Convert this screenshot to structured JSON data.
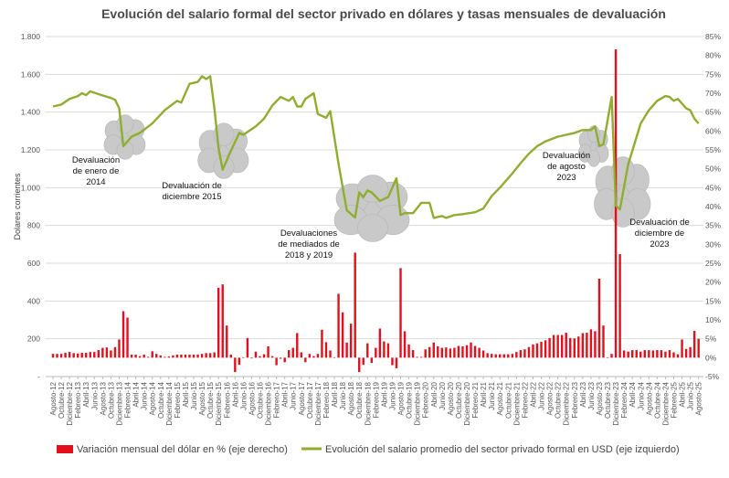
{
  "chart_data": {
    "type": "bar+line",
    "title": "Evolución del salario formal del sector privado en dólares y tasas mensuales de devaluación",
    "ylabel_left": "Dolares corrientes",
    "ylim_left": [
      0,
      1800
    ],
    "ylim_right": [
      -5,
      85
    ],
    "left_ticks": [
      "1.800",
      "1.600",
      "1.400",
      "1.200",
      "1.000",
      "800",
      "600",
      "400",
      "200",
      "-"
    ],
    "right_ticks": [
      "85%",
      "80%",
      "75%",
      "70%",
      "65%",
      "60%",
      "55%",
      "50%",
      "45%",
      "40%",
      "35%",
      "30%",
      "25%",
      "20%",
      "15%",
      "10%",
      "5%",
      "0%",
      "-5%"
    ],
    "grid": "horizontal",
    "legend_placement": "bottom",
    "x_range": [
      "2012-08",
      "2025-08"
    ],
    "x_tick_labels": [
      "Agosto-12",
      "Octubre-12",
      "Diciembre-12",
      "Febrero-13",
      "Abril-13",
      "Junio-13",
      "Agosto-13",
      "Octubre-13",
      "Diciembre-13",
      "Febrero-14",
      "Abril-14",
      "Junio-14",
      "Agosto-14",
      "Octubre-14",
      "Diciembre-14",
      "Febrero-15",
      "Abril-15",
      "Junio-15",
      "Agosto-15",
      "Octubre-15",
      "Diciembre-15",
      "Febrero-16",
      "Abril-16",
      "Junio-16",
      "Agosto-16",
      "Octubre-16",
      "Diciembre-16",
      "Febrero-17",
      "Abril-17",
      "Junio-17",
      "Agosto-17",
      "Octubre-17",
      "Diciembre-17",
      "Febrero-18",
      "Abril-18",
      "Junio-18",
      "Agosto-18",
      "Octubre-18",
      "Diciembre-18",
      "Febrero-19",
      "Abril-19",
      "Junio-19",
      "Agosto-19",
      "Octubre-19",
      "Diciembre-19",
      "Febrero-20",
      "Abril-20",
      "Junio-20",
      "Agosto-20",
      "Octubre-20",
      "Diciembre-20",
      "Febrero-21",
      "Abril-21",
      "Junio-21",
      "Agosto-21",
      "Octubre-21",
      "Diciembre-21",
      "Febrero-22",
      "Abril-22",
      "Junio-22",
      "Agosto-22",
      "Octubre-22",
      "Diciembre-22",
      "Febrero-23",
      "Abril-23",
      "Junio-23",
      "Agosto-23",
      "Octubre-23",
      "Diciembre-23",
      "Febrero-24",
      "Abril-24",
      "Junio-24",
      "Agosto-24",
      "Octubre-24",
      "Diciembre-24",
      "Febrero-25",
      "Abril-25",
      "Junio-25",
      "Agosto-25"
    ],
    "bar_series": {
      "name": "Variación mensual del dólar en % (eje derecho)",
      "axis": "right",
      "color": "#e3101c",
      "start": "2012-08",
      "frequency": "monthly",
      "values": [
        1.0,
        1.0,
        1.0,
        1.3,
        1.5,
        1.2,
        1.1,
        1.3,
        1.3,
        1.5,
        1.5,
        2.0,
        2.6,
        2.7,
        1.9,
        2.8,
        4.8,
        12.3,
        10.6,
        0.8,
        0.8,
        0.4,
        0.8,
        0.2,
        1.7,
        1.0,
        0.6,
        0.2,
        0.3,
        0.6,
        0.8,
        0.8,
        0.8,
        0.8,
        0.8,
        0.8,
        1.0,
        1.2,
        1.2,
        1.4,
        18.5,
        19.4,
        8.5,
        0.8,
        -3.8,
        -1.9,
        0.1,
        5.2,
        -0.2,
        1.6,
        0.4,
        0.9,
        3.0,
        0.4,
        -2.0,
        -0.3,
        -1.2,
        2.0,
        2.6,
        6.5,
        1.4,
        -1.2,
        1.0,
        0.4,
        1.0,
        7.4,
        4.1,
        1.9,
        0.1,
        16.9,
        12.0,
        4.0,
        9.0,
        27.8,
        -3.8,
        -1.9,
        3.8,
        -1.4,
        2.6,
        7.7,
        4.3,
        3.8,
        -2.0,
        -2.8,
        23.7,
        7.0,
        3.5,
        2.0,
        0.2,
        0.2,
        2.2,
        2.8,
        4.0,
        3.0,
        2.6,
        2.7,
        2.4,
        2.6,
        3.1,
        3.0,
        3.3,
        4.0,
        3.1,
        2.6,
        1.9,
        1.2,
        1.0,
        0.9,
        0.9,
        0.9,
        0.9,
        1.0,
        1.5,
        2.0,
        2.2,
        2.8,
        3.5,
        3.8,
        4.2,
        4.6,
        5.2,
        6.0,
        6.0,
        6.0,
        6.6,
        5.2,
        5.1,
        5.6,
        6.5,
        6.6,
        7.5,
        7.0,
        20.9,
        8.5,
        0.1,
        1.0,
        81.6,
        27.4,
        1.9,
        1.6,
        2.0,
        2.0,
        1.6,
        2.0,
        2.0,
        1.9,
        2.0,
        2.0,
        1.6,
        2.0,
        1.4,
        0.9,
        4.8,
        2.3,
        2.8,
        7.1,
        5.0
      ]
    },
    "line_series": {
      "name": "Evolución del salario promedio del sector privado formal en USD (eje izquierdo)",
      "axis": "left",
      "color": "#8fae2e",
      "points": [
        [
          "2012-08",
          1430
        ],
        [
          "2012-10",
          1440
        ],
        [
          "2012-12",
          1470
        ],
        [
          "2013-02",
          1485
        ],
        [
          "2013-03",
          1500
        ],
        [
          "2013-04",
          1490
        ],
        [
          "2013-05",
          1510
        ],
        [
          "2013-07",
          1495
        ],
        [
          "2013-10",
          1475
        ],
        [
          "2013-11",
          1465
        ],
        [
          "2013-12",
          1420
        ],
        [
          "2014-01",
          1220
        ],
        [
          "2014-03",
          1270
        ],
        [
          "2014-05",
          1290
        ],
        [
          "2014-08",
          1340
        ],
        [
          "2014-11",
          1410
        ],
        [
          "2015-02",
          1460
        ],
        [
          "2015-03",
          1450
        ],
        [
          "2015-05",
          1550
        ],
        [
          "2015-07",
          1560
        ],
        [
          "2015-08",
          1590
        ],
        [
          "2015-09",
          1575
        ],
        [
          "2015-10",
          1590
        ],
        [
          "2015-11",
          1420
        ],
        [
          "2015-12",
          1210
        ],
        [
          "2016-01",
          1095
        ],
        [
          "2016-03",
          1195
        ],
        [
          "2016-05",
          1290
        ],
        [
          "2016-06",
          1280
        ],
        [
          "2016-09",
          1325
        ],
        [
          "2016-11",
          1365
        ],
        [
          "2017-01",
          1435
        ],
        [
          "2017-03",
          1480
        ],
        [
          "2017-05",
          1460
        ],
        [
          "2017-06",
          1480
        ],
        [
          "2017-07",
          1430
        ],
        [
          "2017-08",
          1430
        ],
        [
          "2017-09",
          1470
        ],
        [
          "2017-11",
          1500
        ],
        [
          "2017-12",
          1390
        ],
        [
          "2018-02",
          1370
        ],
        [
          "2018-03",
          1405
        ],
        [
          "2018-05",
          1125
        ],
        [
          "2018-07",
          880
        ],
        [
          "2018-09",
          842
        ],
        [
          "2018-10",
          975
        ],
        [
          "2018-11",
          950
        ],
        [
          "2018-12",
          985
        ],
        [
          "2019-01",
          975
        ],
        [
          "2019-03",
          930
        ],
        [
          "2019-05",
          950
        ],
        [
          "2019-07",
          1050
        ],
        [
          "2019-08",
          855
        ],
        [
          "2019-09",
          865
        ],
        [
          "2019-11",
          865
        ],
        [
          "2020-01",
          920
        ],
        [
          "2020-03",
          920
        ],
        [
          "2020-04",
          840
        ],
        [
          "2020-06",
          850
        ],
        [
          "2020-07",
          840
        ],
        [
          "2020-09",
          855
        ],
        [
          "2020-11",
          860
        ],
        [
          "2021-02",
          870
        ],
        [
          "2021-04",
          890
        ],
        [
          "2021-06",
          955
        ],
        [
          "2021-08",
          1000
        ],
        [
          "2021-11",
          1075
        ],
        [
          "2022-01",
          1130
        ],
        [
          "2022-03",
          1180
        ],
        [
          "2022-05",
          1220
        ],
        [
          "2022-07",
          1245
        ],
        [
          "2022-10",
          1270
        ],
        [
          "2022-12",
          1280
        ],
        [
          "2023-02",
          1290
        ],
        [
          "2023-04",
          1305
        ],
        [
          "2023-06",
          1305
        ],
        [
          "2023-07",
          1325
        ],
        [
          "2023-08",
          1220
        ],
        [
          "2023-09",
          1230
        ],
        [
          "2023-11",
          1480
        ],
        [
          "2023-12",
          905
        ],
        [
          "2024-01",
          885
        ],
        [
          "2024-03",
          1125
        ],
        [
          "2024-04",
          1195
        ],
        [
          "2024-06",
          1340
        ],
        [
          "2024-08",
          1410
        ],
        [
          "2024-10",
          1460
        ],
        [
          "2024-12",
          1485
        ],
        [
          "2025-01",
          1480
        ],
        [
          "2025-02",
          1460
        ],
        [
          "2025-03",
          1470
        ],
        [
          "2025-05",
          1420
        ],
        [
          "2025-06",
          1410
        ],
        [
          "2025-07",
          1365
        ],
        [
          "2025-08",
          1340
        ]
      ]
    },
    "annotations": [
      {
        "lines": [
          "Devaluación",
          "de enero de",
          "2014"
        ],
        "date": "2014-01"
      },
      {
        "lines": [
          "Devaluación de",
          "diciembre 2015"
        ],
        "date": "2015-12"
      },
      {
        "lines": [
          "Devaluaciones",
          "de mediados de",
          "2018 y 2019"
        ],
        "date": "2018-09"
      },
      {
        "lines": [
          "Devaluación",
          "de agosto",
          "2023"
        ],
        "date": "2023-08"
      },
      {
        "lines": [
          "Devaluación de",
          "diciembre de",
          "2023"
        ],
        "date": "2023-12"
      }
    ],
    "cloud_color": "#c9c9c9"
  }
}
